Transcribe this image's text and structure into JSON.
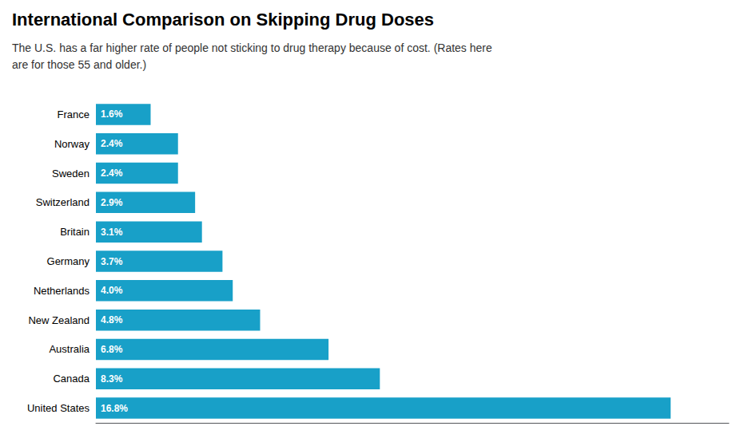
{
  "chart_data": {
    "type": "bar",
    "orientation": "horizontal",
    "title": "International Comparison on Skipping Drug Doses",
    "subtitle": "The U.S. has a far higher rate of people not sticking to drug therapy because of cost. (Rates here\nare for those 55 and older.)",
    "categories": [
      "France",
      "Norway",
      "Sweden",
      "Switzerland",
      "Britain",
      "Germany",
      "Netherlands",
      "New Zealand",
      "Australia",
      "Canada",
      "United States"
    ],
    "values": [
      1.6,
      2.4,
      2.4,
      2.9,
      3.1,
      3.7,
      4.0,
      4.8,
      6.8,
      8.3,
      16.8
    ],
    "value_labels": [
      "1.6%",
      "2.4%",
      "2.4%",
      "2.9%",
      "3.1%",
      "3.7%",
      "4.0%",
      "4.8%",
      "6.8%",
      "8.3%",
      "16.8%"
    ],
    "data_labels": true,
    "color": "#18a0c8",
    "xlim": [
      0,
      18.5
    ],
    "tick_labels": "y",
    "grid": false
  }
}
